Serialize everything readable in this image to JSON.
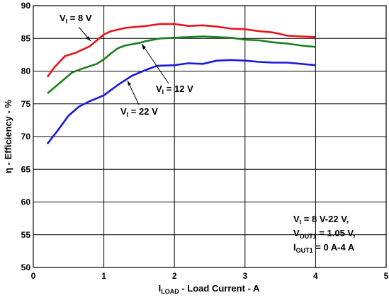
{
  "chart_data": {
    "type": "line",
    "title": "",
    "xlabel_sub": "LOAD",
    "xlabel_main": " - Load Current - A",
    "ylabel": "η - Efficiency - %",
    "xlim": [
      0,
      5
    ],
    "ylim": [
      50,
      90
    ],
    "xticks": [
      0,
      1,
      2,
      3,
      4,
      5
    ],
    "yticks": [
      50,
      55,
      60,
      65,
      70,
      75,
      80,
      85,
      90
    ],
    "grid": true,
    "series": [
      {
        "name": "VI = 8 V",
        "color": "#e8141a",
        "x": [
          0.2,
          0.3,
          0.45,
          0.6,
          0.8,
          1.0,
          1.1,
          1.3,
          1.5,
          1.6,
          1.8,
          2.0,
          2.2,
          2.4,
          2.6,
          2.8,
          3.0,
          3.2,
          3.4,
          3.6,
          3.8,
          4.0
        ],
        "y": [
          79.1,
          80.6,
          82.3,
          82.8,
          83.8,
          85.6,
          86.1,
          86.6,
          86.8,
          86.9,
          87.2,
          87.2,
          86.9,
          87.0,
          86.8,
          86.5,
          86.4,
          86.1,
          85.9,
          85.4,
          85.3,
          85.2
        ]
      },
      {
        "name": "VI = 12 V",
        "color": "#1c7f1c",
        "x": [
          0.2,
          0.4,
          0.55,
          0.7,
          0.9,
          1.0,
          1.1,
          1.2,
          1.3,
          1.5,
          1.6,
          1.8,
          2.0,
          2.2,
          2.4,
          2.6,
          2.8,
          3.0,
          3.2,
          3.4,
          3.6,
          3.8,
          4.0
        ],
        "y": [
          76.6,
          78.4,
          79.8,
          80.4,
          81.1,
          81.8,
          82.7,
          83.5,
          83.9,
          84.3,
          84.6,
          85.0,
          85.1,
          85.2,
          85.3,
          85.2,
          85.1,
          84.8,
          84.7,
          84.4,
          84.2,
          83.9,
          83.7
        ]
      },
      {
        "name": "VI = 22 V",
        "color": "#1a1adc",
        "x": [
          0.2,
          0.35,
          0.5,
          0.65,
          0.8,
          1.0,
          1.2,
          1.4,
          1.6,
          1.75,
          2.0,
          2.2,
          2.4,
          2.6,
          2.8,
          3.0,
          3.2,
          3.4,
          3.6,
          3.8,
          4.0
        ],
        "y": [
          68.9,
          71.0,
          73.2,
          74.6,
          75.4,
          76.3,
          77.9,
          79.3,
          80.2,
          80.8,
          80.9,
          81.2,
          81.1,
          81.6,
          81.7,
          81.6,
          81.4,
          81.3,
          81.3,
          81.1,
          80.9
        ]
      }
    ],
    "curve_labels": [
      {
        "base": "V",
        "sub": "I",
        "rest": " = 8 V"
      },
      {
        "base": "V",
        "sub": "I",
        "rest": " = 12 V"
      },
      {
        "base": "V",
        "sub": "I",
        "rest": " = 22 V"
      }
    ],
    "conditions": [
      {
        "base": "V",
        "sub": "I",
        "rest": " = 8 V-22 V,"
      },
      {
        "base": "V",
        "sub": "OUT1",
        "rest": " = 1.05 V,"
      },
      {
        "base": "I",
        "sub": "OUT1",
        "rest": " = 0 A-4 A"
      }
    ]
  }
}
